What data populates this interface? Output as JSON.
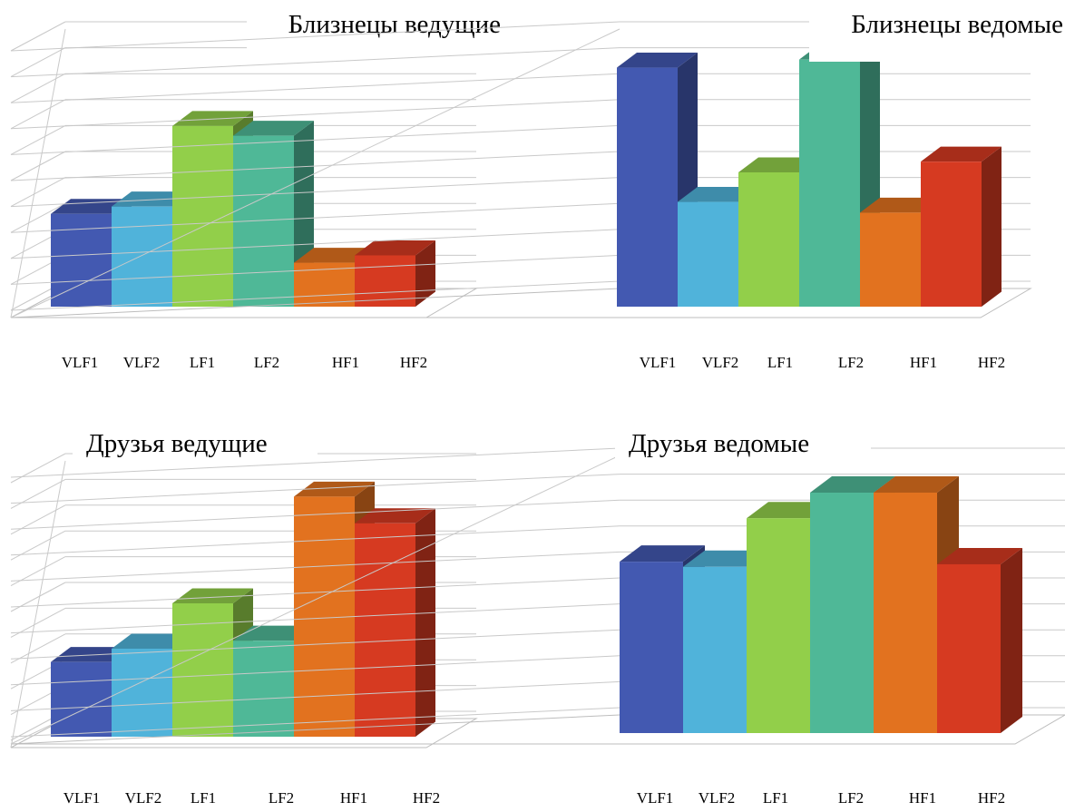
{
  "chart_data": [
    {
      "type": "bar",
      "title": "Близнецы ведущие",
      "categories": [
        "VLF1",
        "VLF2",
        "LF1",
        "LF2",
        "HF1",
        "HF2"
      ],
      "values": [
        3.8,
        4.1,
        7.4,
        7.0,
        1.8,
        2.1
      ],
      "ylim": [
        0,
        11
      ],
      "grid": true,
      "colors": [
        "#4359b1",
        "#50b3da",
        "#92cf4a",
        "#4fb897",
        "#e2721f",
        "#d63a21"
      ]
    },
    {
      "type": "bar",
      "title": "Близнецы ведомые",
      "categories": [
        "VLF1",
        "VLF2",
        "LF1",
        "LF2",
        "HF1",
        "HF2"
      ],
      "values": [
        8.9,
        3.9,
        5.0,
        9.2,
        3.5,
        5.4
      ],
      "ylim": [
        0,
        10
      ],
      "grid": true,
      "colors": [
        "#4359b1",
        "#50b3da",
        "#92cf4a",
        "#4fb897",
        "#e2721f",
        "#d63a21"
      ]
    },
    {
      "type": "bar",
      "title": "Друзья ведущие",
      "categories": [
        "VLF1",
        "VLF2",
        "LF1",
        "LF2",
        "HF1",
        "HF2"
      ],
      "values": [
        2.8,
        3.3,
        5.0,
        3.6,
        9.0,
        8.0
      ],
      "ylim": [
        0,
        10
      ],
      "grid": true,
      "colors": [
        "#4359b1",
        "#50b3da",
        "#92cf4a",
        "#4fb897",
        "#e2721f",
        "#d63a21"
      ]
    },
    {
      "type": "bar",
      "title": "Друзья ведомые",
      "categories": [
        "VLF1",
        "VLF2",
        "LF1",
        "LF2",
        "HF1",
        "HF2"
      ],
      "values": [
        6.7,
        6.5,
        8.4,
        9.4,
        9.4,
        6.6
      ],
      "ylim": [
        0,
        10.5
      ],
      "grid": true,
      "colors": [
        "#4359b1",
        "#50b3da",
        "#92cf4a",
        "#4fb897",
        "#e2721f",
        "#d63a21"
      ]
    }
  ]
}
